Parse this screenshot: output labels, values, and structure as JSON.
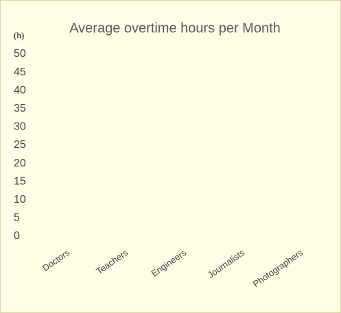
{
  "chart_data": {
    "type": "bar",
    "title": "Average overtime hours per Month",
    "y_label": "(h)",
    "categories": [
      "Doctors",
      "Teachers",
      "Engineers",
      "Journalists",
      "Photographers"
    ],
    "ylim": [
      0,
      50
    ],
    "yticks": [
      0,
      5,
      10,
      15,
      20,
      25,
      30,
      35,
      40,
      45,
      50
    ],
    "grid": false
  }
}
